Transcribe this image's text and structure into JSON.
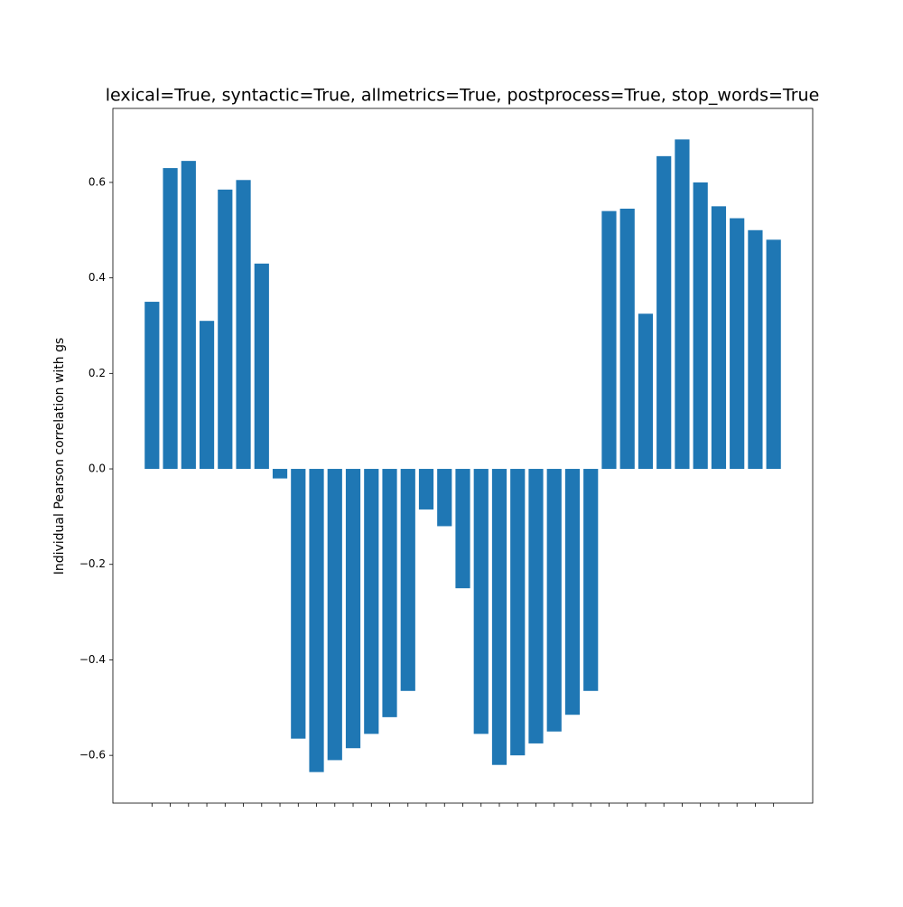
{
  "chart_data": {
    "type": "bar",
    "title": "lexical=True, syntactic=True, allmetrics=True, postprocess=True, stop_words=True",
    "y_label": "Individual Pearson correlation with gs",
    "categories": [
      null,
      null,
      null,
      null,
      null,
      null,
      null,
      null,
      null,
      null,
      null,
      null,
      null,
      null,
      null,
      null,
      null,
      null,
      null,
      null,
      null,
      null,
      null,
      null,
      null,
      null,
      null,
      null,
      null,
      null,
      null,
      null,
      null,
      null,
      null
    ],
    "values": [
      0.35,
      0.63,
      0.645,
      0.31,
      0.585,
      0.605,
      0.43,
      -0.02,
      -0.565,
      -0.635,
      -0.61,
      -0.585,
      -0.555,
      -0.52,
      -0.465,
      -0.085,
      -0.12,
      -0.25,
      -0.555,
      -0.62,
      -0.6,
      -0.575,
      -0.55,
      -0.515,
      -0.465,
      0.54,
      0.545,
      0.325,
      0.655,
      0.69,
      0.6,
      0.55,
      0.525,
      0.5,
      0.48
    ],
    "color": "#1f77b4",
    "ylim": [
      -0.7,
      0.755
    ],
    "yticks": [
      {
        "value": -0.6,
        "label": "−0.6"
      },
      {
        "value": -0.4,
        "label": "−0.4"
      },
      {
        "value": -0.2,
        "label": "−0.2"
      },
      {
        "value": 0,
        "label": "0.0"
      },
      0.2,
      0.4,
      0.6
    ]
  }
}
